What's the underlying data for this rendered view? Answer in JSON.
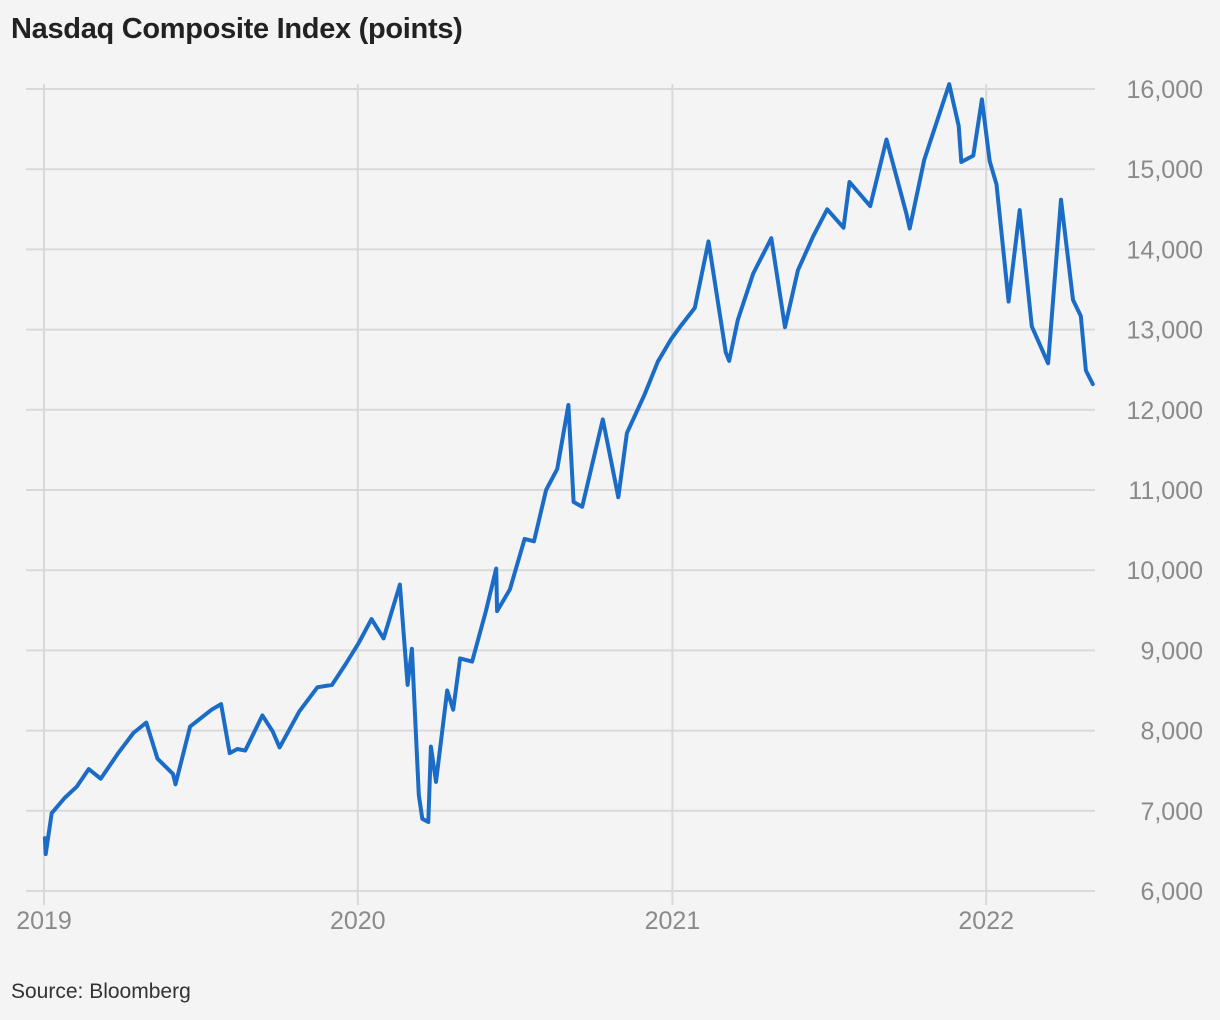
{
  "title": "Nasdaq Composite Index (points)",
  "source": "Source: Bloomberg",
  "colors": {
    "line": "#1a6cc7",
    "grid": "#d9d9d9",
    "tick_text": "#8a8a8a",
    "background": "#f4f4f4"
  },
  "chart_data": {
    "type": "line",
    "title": "Nasdaq Composite Index (points)",
    "xlabel": "",
    "ylabel": "",
    "x_ticks": [
      "2019",
      "2020",
      "2021",
      "2022"
    ],
    "y_ticks": [
      "6,000",
      "7,000",
      "8,000",
      "9,000",
      "10,000",
      "11,000",
      "12,000",
      "13,000",
      "14,000",
      "15,000",
      "16,000"
    ],
    "ylim": [
      6000,
      16000
    ],
    "xlim": [
      "2019-01-01",
      "2022-05-10"
    ],
    "y_axis_position": "right",
    "grid": true,
    "legend": "none",
    "series": [
      {
        "values": [
          [
            "2019-01-02",
            6660
          ],
          [
            "2019-01-03",
            6460
          ],
          [
            "2019-01-10",
            6970
          ],
          [
            "2019-01-25",
            7160
          ],
          [
            "2019-02-08",
            7300
          ],
          [
            "2019-02-22",
            7520
          ],
          [
            "2019-03-08",
            7400
          ],
          [
            "2019-03-29",
            7730
          ],
          [
            "2019-04-15",
            7970
          ],
          [
            "2019-04-30",
            8100
          ],
          [
            "2019-05-13",
            7650
          ],
          [
            "2019-05-31",
            7460
          ],
          [
            "2019-06-03",
            7330
          ],
          [
            "2019-06-20",
            8050
          ],
          [
            "2019-07-15",
            8260
          ],
          [
            "2019-07-26",
            8330
          ],
          [
            "2019-08-05",
            7720
          ],
          [
            "2019-08-14",
            7770
          ],
          [
            "2019-08-23",
            7750
          ],
          [
            "2019-09-12",
            8190
          ],
          [
            "2019-09-24",
            7990
          ],
          [
            "2019-10-02",
            7790
          ],
          [
            "2019-10-25",
            8240
          ],
          [
            "2019-11-15",
            8540
          ],
          [
            "2019-12-02",
            8570
          ],
          [
            "2019-12-18",
            8830
          ],
          [
            "2020-01-02",
            9090
          ],
          [
            "2020-01-17",
            9390
          ],
          [
            "2020-01-31",
            9150
          ],
          [
            "2020-02-19",
            9820
          ],
          [
            "2020-02-28",
            8570
          ],
          [
            "2020-03-04",
            9020
          ],
          [
            "2020-03-12",
            7200
          ],
          [
            "2020-03-16",
            6900
          ],
          [
            "2020-03-23",
            6860
          ],
          [
            "2020-03-26",
            7800
          ],
          [
            "2020-04-01",
            7360
          ],
          [
            "2020-04-14",
            8500
          ],
          [
            "2020-04-21",
            8260
          ],
          [
            "2020-04-29",
            8900
          ],
          [
            "2020-05-13",
            8860
          ],
          [
            "2020-05-29",
            9490
          ],
          [
            "2020-06-10",
            10020
          ],
          [
            "2020-06-11",
            9490
          ],
          [
            "2020-06-26",
            9760
          ],
          [
            "2020-07-13",
            10390
          ],
          [
            "2020-07-24",
            10360
          ],
          [
            "2020-08-07",
            11000
          ],
          [
            "2020-08-20",
            11260
          ],
          [
            "2020-09-02",
            12060
          ],
          [
            "2020-09-08",
            10850
          ],
          [
            "2020-09-18",
            10790
          ],
          [
            "2020-10-12",
            11880
          ],
          [
            "2020-10-30",
            10910
          ],
          [
            "2020-11-09",
            11710
          ],
          [
            "2020-11-30",
            12200
          ],
          [
            "2020-12-15",
            12600
          ],
          [
            "2020-12-31",
            12890
          ],
          [
            "2021-01-11",
            13050
          ],
          [
            "2021-01-27",
            13270
          ],
          [
            "2021-02-12",
            14100
          ],
          [
            "2021-03-04",
            12720
          ],
          [
            "2021-03-08",
            12610
          ],
          [
            "2021-03-18",
            13120
          ],
          [
            "2021-04-05",
            13700
          ],
          [
            "2021-04-26",
            14140
          ],
          [
            "2021-05-12",
            13030
          ],
          [
            "2021-05-27",
            13740
          ],
          [
            "2021-06-14",
            14170
          ],
          [
            "2021-06-30",
            14500
          ],
          [
            "2021-07-19",
            14270
          ],
          [
            "2021-07-26",
            14840
          ],
          [
            "2021-08-19",
            14540
          ],
          [
            "2021-09-07",
            15370
          ],
          [
            "2021-09-30",
            14450
          ],
          [
            "2021-10-04",
            14260
          ],
          [
            "2021-10-21",
            15120
          ],
          [
            "2021-11-19",
            16060
          ],
          [
            "2021-11-30",
            15540
          ],
          [
            "2021-12-03",
            15090
          ],
          [
            "2021-12-17",
            15170
          ],
          [
            "2021-12-27",
            15870
          ],
          [
            "2022-01-05",
            15100
          ],
          [
            "2022-01-13",
            14810
          ],
          [
            "2022-01-27",
            13350
          ],
          [
            "2022-02-09",
            14490
          ],
          [
            "2022-02-23",
            13040
          ],
          [
            "2022-03-14",
            12580
          ],
          [
            "2022-03-29",
            14620
          ],
          [
            "2022-04-12",
            13370
          ],
          [
            "2022-04-21",
            13170
          ],
          [
            "2022-04-27",
            12490
          ],
          [
            "2022-05-05",
            12320
          ]
        ]
      }
    ]
  }
}
